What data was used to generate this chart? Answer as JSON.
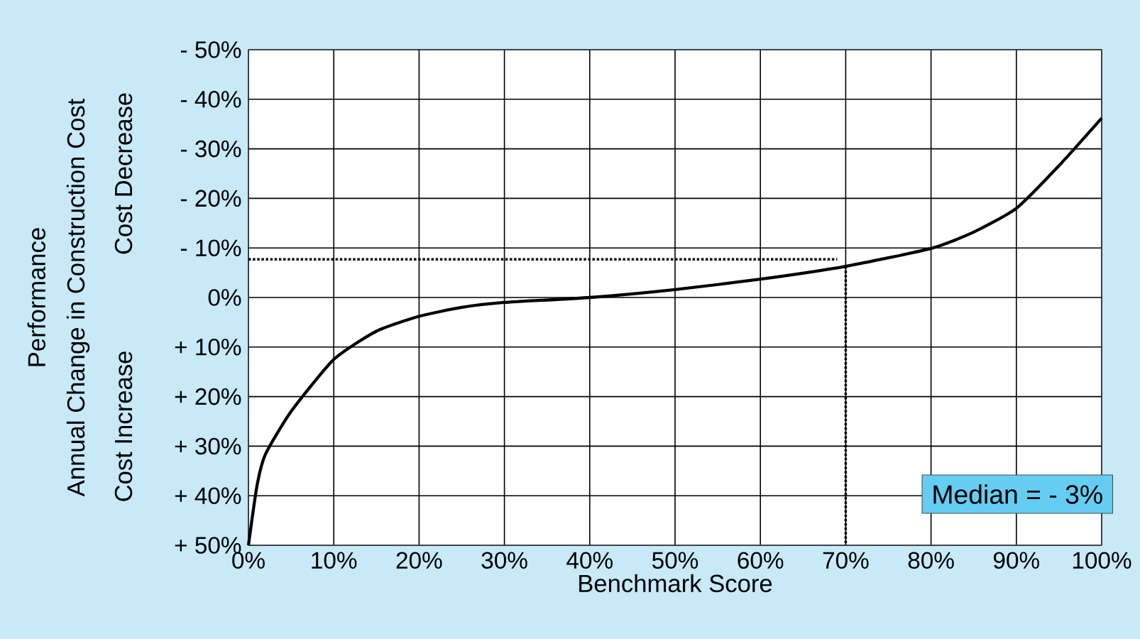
{
  "chart_data": {
    "type": "line",
    "xlabel": "Benchmark Score",
    "ylabel": "Annual Change in Construction Cost",
    "annotations": [
      "Median = - 3%",
      "Performance",
      "Cost Decrease",
      "Cost Increase"
    ],
    "series": [
      {
        "color": "#000000",
        "x": [
          0,
          1,
          2,
          5,
          10,
          15,
          20,
          25,
          30,
          40,
          50,
          60,
          70,
          80,
          85,
          90,
          95,
          100
        ],
        "values": [
          50,
          38,
          31.6,
          23,
          12.5,
          6.8,
          3.8,
          2,
          1,
          0,
          -1.6,
          -3.7,
          -6.3,
          -9.9,
          -13.2,
          -18,
          -26.6,
          -36.2
        ]
      },
      {
        "color": "#000000",
        "line_style": "dotted",
        "x": [
          0,
          69
        ],
        "values": [
          -7.7,
          -7.7
        ]
      },
      {
        "color": "#000000",
        "line_style": "dotted",
        "x": [
          70,
          70
        ],
        "values": [
          -6.3,
          50
        ]
      }
    ],
    "xlim": [
      0,
      100
    ],
    "xticks": [
      {
        "value": 0,
        "label": "0%"
      },
      {
        "value": 10,
        "label": "10%"
      },
      {
        "value": 20,
        "label": "20%"
      },
      {
        "value": 30,
        "label": "30%"
      },
      {
        "value": 40,
        "label": "40%"
      },
      {
        "value": 50,
        "label": "50%"
      },
      {
        "value": 60,
        "label": "60%"
      },
      {
        "value": 70,
        "label": "70%"
      },
      {
        "value": 80,
        "label": "80%"
      },
      {
        "value": 90,
        "label": "90%"
      },
      {
        "value": 100,
        "label": "100%"
      }
    ],
    "ylim": [
      50,
      -50
    ],
    "yticks": [
      {
        "value": -50,
        "label": "- 50%"
      },
      {
        "value": -40,
        "label": "- 40%"
      },
      {
        "value": -30,
        "label": "- 30%"
      },
      {
        "value": -20,
        "label": "- 20%"
      },
      {
        "value": -10,
        "label": "- 10%"
      },
      {
        "value": 0,
        "label": "0%"
      },
      {
        "value": 10,
        "label": "+ 10%"
      },
      {
        "value": 20,
        "label": "+ 20%"
      },
      {
        "value": 30,
        "label": "+ 30%"
      },
      {
        "value": 40,
        "label": "+ 40%"
      },
      {
        "value": 50,
        "label": "+ 50%"
      }
    ],
    "grid": true,
    "marker": "none",
    "line_style": "solid"
  }
}
